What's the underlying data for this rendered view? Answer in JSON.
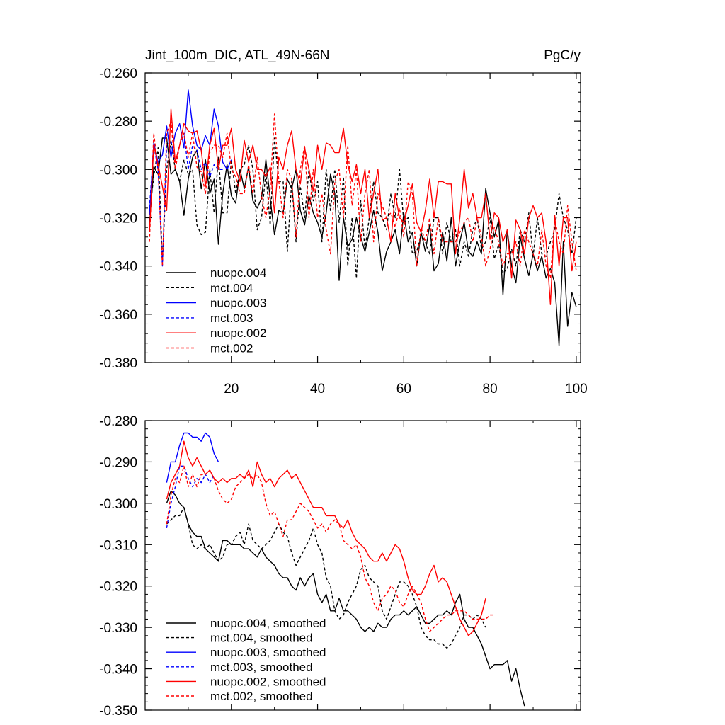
{
  "figure": {
    "title_left": "Jint_100m_DIC, ATL_49N-66N",
    "title_right": "PgC/y"
  },
  "colors": {
    "black": "#000000",
    "blue": "#0000ff",
    "red": "#ff0000"
  },
  "chart_data": [
    {
      "type": "line",
      "panel": "top",
      "title": "Jint_100m_DIC, ATL_49N-66N",
      "units": "PgC/y",
      "xlabel": "",
      "ylabel": "",
      "xlim": [
        0,
        101
      ],
      "ylim": [
        -0.38,
        -0.26
      ],
      "xticks": [
        20,
        40,
        60,
        80,
        100
      ],
      "xtick_labels": [
        "20",
        "40",
        "60",
        "80",
        "100"
      ],
      "yticks": [
        -0.26,
        -0.28,
        -0.3,
        -0.32,
        -0.34,
        -0.36,
        -0.38
      ],
      "ytick_labels": [
        "-0.260",
        "-0.280",
        "-0.300",
        "-0.320",
        "-0.340",
        "-0.360",
        "-0.380"
      ],
      "legend": [
        "nuopc.004",
        "mct.004",
        "nuopc.003",
        "mct.003",
        "nuopc.002",
        "mct.002"
      ],
      "series": [
        {
          "name": "nuopc.004",
          "color": "#000000",
          "dash": false,
          "x_start": 1,
          "values": [
            -0.323,
            -0.299,
            -0.302,
            -0.287,
            -0.287,
            -0.302,
            -0.3,
            -0.305,
            -0.319,
            -0.304,
            -0.295,
            -0.292,
            -0.308,
            -0.296,
            -0.31,
            -0.304,
            -0.331,
            -0.31,
            -0.298,
            -0.311,
            -0.314,
            -0.3,
            -0.308,
            -0.299,
            -0.313,
            -0.316,
            -0.312,
            -0.296,
            -0.312,
            -0.327,
            -0.317,
            -0.318,
            -0.304,
            -0.308,
            -0.3,
            -0.317,
            -0.323,
            -0.311,
            -0.318,
            -0.322,
            -0.328,
            -0.318,
            -0.302,
            -0.31,
            -0.346,
            -0.32,
            -0.332,
            -0.329,
            -0.32,
            -0.328,
            -0.334,
            -0.326,
            -0.317,
            -0.326,
            -0.342,
            -0.334,
            -0.33,
            -0.325,
            -0.335,
            -0.318,
            -0.33,
            -0.326,
            -0.34,
            -0.326,
            -0.334,
            -0.323,
            -0.342,
            -0.339,
            -0.326,
            -0.338,
            -0.32,
            -0.34,
            -0.33,
            -0.322,
            -0.334,
            -0.336,
            -0.33,
            -0.335,
            -0.308,
            -0.318,
            -0.328,
            -0.321,
            -0.352,
            -0.325,
            -0.34,
            -0.347,
            -0.328,
            -0.337,
            -0.344,
            -0.335,
            -0.342,
            -0.336,
            -0.345,
            -0.341,
            -0.347,
            -0.373,
            -0.33,
            -0.365,
            -0.351,
            -0.357
          ]
        },
        {
          "name": "mct.004",
          "color": "#000000",
          "dash": true,
          "x_start": 1,
          "values": [
            -0.318,
            -0.303,
            -0.291,
            -0.338,
            -0.3,
            -0.288,
            -0.3,
            -0.305,
            -0.296,
            -0.302,
            -0.3,
            -0.323,
            -0.327,
            -0.326,
            -0.3,
            -0.318,
            -0.295,
            -0.318,
            -0.318,
            -0.296,
            -0.31,
            -0.3,
            -0.298,
            -0.29,
            -0.3,
            -0.325,
            -0.32,
            -0.301,
            -0.323,
            -0.287,
            -0.305,
            -0.305,
            -0.334,
            -0.305,
            -0.33,
            -0.307,
            -0.32,
            -0.3,
            -0.313,
            -0.305,
            -0.33,
            -0.3,
            -0.317,
            -0.3,
            -0.322,
            -0.303,
            -0.34,
            -0.32,
            -0.345,
            -0.313,
            -0.333,
            -0.32,
            -0.305,
            -0.318,
            -0.32,
            -0.325,
            -0.31,
            -0.32,
            -0.3,
            -0.322,
            -0.32,
            -0.335,
            -0.334,
            -0.327,
            -0.33,
            -0.335,
            -0.32,
            -0.32,
            -0.335,
            -0.322,
            -0.33,
            -0.325,
            -0.34,
            -0.33,
            -0.336,
            -0.325,
            -0.32,
            -0.333,
            -0.33,
            -0.32,
            -0.337,
            -0.331,
            -0.343,
            -0.341,
            -0.333,
            -0.34,
            -0.325,
            -0.33,
            -0.318,
            -0.336,
            -0.32,
            -0.335,
            -0.336,
            -0.33,
            -0.325,
            -0.31,
            -0.32,
            -0.325,
            -0.335,
            -0.32
          ]
        },
        {
          "name": "nuopc.003",
          "color": "#0000ff",
          "dash": false,
          "x_start": 1,
          "values": [
            -0.319,
            -0.289,
            -0.297,
            -0.294,
            -0.282,
            -0.295,
            -0.285,
            -0.281,
            -0.291,
            -0.267,
            -0.282,
            -0.29,
            -0.292,
            -0.286,
            -0.29,
            -0.275,
            -0.282,
            -0.297,
            -0.3,
            -0.296
          ]
        },
        {
          "name": "mct.003",
          "color": "#0000ff",
          "dash": true,
          "x_start": 1,
          "values": [
            -0.316,
            -0.29,
            -0.3,
            -0.34,
            -0.29,
            -0.288,
            -0.297,
            -0.29,
            -0.285,
            -0.3,
            -0.29,
            -0.292,
            -0.3,
            -0.297,
            -0.303,
            -0.298,
            -0.3,
            -0.3
          ]
        },
        {
          "name": "nuopc.002",
          "color": "#ff0000",
          "dash": false,
          "x_start": 1,
          "values": [
            -0.326,
            -0.29,
            -0.298,
            -0.307,
            -0.317,
            -0.275,
            -0.297,
            -0.29,
            -0.281,
            -0.284,
            -0.285,
            -0.284,
            -0.292,
            -0.307,
            -0.29,
            -0.283,
            -0.3,
            -0.29,
            -0.29,
            -0.283,
            -0.3,
            -0.305,
            -0.288,
            -0.297,
            -0.29,
            -0.3,
            -0.3,
            -0.303,
            -0.299,
            -0.318,
            -0.295,
            -0.3,
            -0.29,
            -0.284,
            -0.3,
            -0.306,
            -0.291,
            -0.3,
            -0.309,
            -0.29,
            -0.3,
            -0.289,
            -0.29,
            -0.293,
            -0.293,
            -0.283,
            -0.298,
            -0.305,
            -0.298,
            -0.31,
            -0.3,
            -0.32,
            -0.31,
            -0.3,
            -0.321,
            -0.32,
            -0.33,
            -0.31,
            -0.32,
            -0.322,
            -0.315,
            -0.306,
            -0.322,
            -0.326,
            -0.317,
            -0.304,
            -0.32,
            -0.305,
            -0.305,
            -0.306,
            -0.306,
            -0.335,
            -0.32,
            -0.3,
            -0.316,
            -0.31,
            -0.32,
            -0.32,
            -0.31,
            -0.329,
            -0.318,
            -0.32,
            -0.33,
            -0.325,
            -0.345,
            -0.321,
            -0.325,
            -0.335,
            -0.32,
            -0.315,
            -0.32,
            -0.318,
            -0.33,
            -0.356,
            -0.319,
            -0.34,
            -0.32,
            -0.32,
            -0.342,
            -0.33
          ]
        },
        {
          "name": "mct.002",
          "color": "#ff0000",
          "dash": true,
          "x_start": 1,
          "values": [
            -0.33,
            -0.285,
            -0.3,
            -0.34,
            -0.285,
            -0.28,
            -0.3,
            -0.29,
            -0.285,
            -0.295,
            -0.285,
            -0.299,
            -0.301,
            -0.31,
            -0.293,
            -0.29,
            -0.29,
            -0.295,
            -0.285,
            -0.3,
            -0.303,
            -0.31,
            -0.31,
            -0.298,
            -0.31,
            -0.295,
            -0.311,
            -0.32,
            -0.308,
            -0.277,
            -0.305,
            -0.32,
            -0.3,
            -0.304,
            -0.328,
            -0.3,
            -0.29,
            -0.32,
            -0.3,
            -0.32,
            -0.31,
            -0.325,
            -0.335,
            -0.305,
            -0.3,
            -0.32,
            -0.29,
            -0.315,
            -0.3,
            -0.33,
            -0.31,
            -0.3,
            -0.33,
            -0.31,
            -0.315,
            -0.32,
            -0.318,
            -0.324,
            -0.316,
            -0.328,
            -0.305,
            -0.31,
            -0.34,
            -0.324,
            -0.33,
            -0.32,
            -0.335,
            -0.32,
            -0.33,
            -0.33,
            -0.33,
            -0.33,
            -0.326,
            -0.322,
            -0.32,
            -0.33,
            -0.32,
            -0.328,
            -0.34,
            -0.333,
            -0.324,
            -0.33,
            -0.34,
            -0.335,
            -0.335,
            -0.33,
            -0.34,
            -0.325,
            -0.33,
            -0.335,
            -0.34,
            -0.325,
            -0.34,
            -0.345,
            -0.32,
            -0.33,
            -0.335,
            -0.315,
            -0.33,
            -0.342
          ]
        }
      ]
    },
    {
      "type": "line",
      "panel": "bottom",
      "title": "",
      "xlabel": "",
      "ylabel": "",
      "xlim": [
        0,
        101
      ],
      "ylim": [
        -0.35,
        -0.28
      ],
      "xticks": [
        20,
        40,
        60,
        80,
        100
      ],
      "xtick_labels": [],
      "yticks": [
        -0.28,
        -0.29,
        -0.3,
        -0.31,
        -0.32,
        -0.33,
        -0.34,
        -0.35
      ],
      "ytick_labels": [
        "-0.280",
        "-0.290",
        "-0.300",
        "-0.310",
        "-0.320",
        "-0.330",
        "-0.340",
        "-0.350"
      ],
      "legend": [
        "nuopc.004, smoothed",
        "mct.004, smoothed",
        "nuopc.003, smoothed",
        "mct.003, smoothed",
        "nuopc.002, smoothed",
        "mct.002, smoothed"
      ],
      "series": [
        {
          "name": "nuopc.004, smoothed",
          "color": "#000000",
          "dash": false,
          "x_start": 5,
          "values": [
            -0.3,
            -0.297,
            -0.298,
            -0.3,
            -0.301,
            -0.305,
            -0.307,
            -0.308,
            -0.308,
            -0.311,
            -0.312,
            -0.313,
            -0.314,
            -0.309,
            -0.309,
            -0.31,
            -0.31,
            -0.31,
            -0.311,
            -0.311,
            -0.312,
            -0.313,
            -0.311,
            -0.313,
            -0.314,
            -0.315,
            -0.317,
            -0.318,
            -0.318,
            -0.32,
            -0.321,
            -0.318,
            -0.32,
            -0.318,
            -0.317,
            -0.322,
            -0.324,
            -0.322,
            -0.326,
            -0.326,
            -0.323,
            -0.326,
            -0.326,
            -0.327,
            -0.328,
            -0.33,
            -0.331,
            -0.33,
            -0.331,
            -0.329,
            -0.33,
            -0.33,
            -0.328,
            -0.327,
            -0.327,
            -0.326,
            -0.327,
            -0.326,
            -0.325,
            -0.327,
            -0.329,
            -0.329,
            -0.328,
            -0.327,
            -0.327,
            -0.326,
            -0.327,
            -0.324,
            -0.322,
            -0.328,
            -0.33,
            -0.33,
            -0.332,
            -0.334,
            -0.337,
            -0.34,
            -0.339,
            -0.339,
            -0.339,
            -0.338,
            -0.343,
            -0.34,
            -0.345,
            -0.349
          ]
        },
        {
          "name": "mct.004, smoothed",
          "color": "#000000",
          "dash": true,
          "x_start": 5,
          "values": [
            -0.305,
            -0.304,
            -0.303,
            -0.303,
            -0.301,
            -0.305,
            -0.31,
            -0.311,
            -0.31,
            -0.311,
            -0.31,
            -0.312,
            -0.314,
            -0.313,
            -0.31,
            -0.31,
            -0.308,
            -0.307,
            -0.31,
            -0.305,
            -0.309,
            -0.31,
            -0.311,
            -0.31,
            -0.309,
            -0.307,
            -0.305,
            -0.307,
            -0.308,
            -0.312,
            -0.315,
            -0.313,
            -0.311,
            -0.309,
            -0.306,
            -0.31,
            -0.312,
            -0.318,
            -0.32,
            -0.326,
            -0.328,
            -0.327,
            -0.324,
            -0.322,
            -0.32,
            -0.316,
            -0.315,
            -0.318,
            -0.319,
            -0.32,
            -0.326,
            -0.328,
            -0.325,
            -0.322,
            -0.319,
            -0.319,
            -0.32,
            -0.322,
            -0.325,
            -0.33,
            -0.332,
            -0.333,
            -0.333,
            -0.334,
            -0.334,
            -0.335,
            -0.334,
            -0.332,
            -0.33,
            -0.327,
            -0.327,
            -0.328,
            -0.327,
            -0.328,
            -0.33
          ]
        },
        {
          "name": "nuopc.003, smoothed",
          "color": "#0000ff",
          "dash": false,
          "x_start": 5,
          "values": [
            -0.295,
            -0.29,
            -0.29,
            -0.286,
            -0.283,
            -0.283,
            -0.284,
            -0.284,
            -0.285,
            -0.283,
            -0.284,
            -0.288,
            -0.29
          ]
        },
        {
          "name": "mct.003, smoothed",
          "color": "#0000ff",
          "dash": true,
          "x_start": 5,
          "values": [
            -0.306,
            -0.3,
            -0.296,
            -0.291,
            -0.291,
            -0.294,
            -0.296,
            -0.294,
            -0.295,
            -0.293,
            -0.295,
            -0.293
          ]
        },
        {
          "name": "nuopc.002, smoothed",
          "color": "#ff0000",
          "dash": false,
          "x_start": 5,
          "values": [
            -0.299,
            -0.295,
            -0.293,
            -0.291,
            -0.285,
            -0.289,
            -0.291,
            -0.289,
            -0.291,
            -0.293,
            -0.292,
            -0.294,
            -0.295,
            -0.294,
            -0.295,
            -0.294,
            -0.294,
            -0.293,
            -0.294,
            -0.292,
            -0.296,
            -0.29,
            -0.293,
            -0.295,
            -0.294,
            -0.296,
            -0.294,
            -0.293,
            -0.292,
            -0.294,
            -0.293,
            -0.295,
            -0.297,
            -0.299,
            -0.301,
            -0.301,
            -0.301,
            -0.303,
            -0.303,
            -0.303,
            -0.305,
            -0.306,
            -0.304,
            -0.307,
            -0.309,
            -0.31,
            -0.311,
            -0.313,
            -0.314,
            -0.314,
            -0.312,
            -0.314,
            -0.312,
            -0.31,
            -0.311,
            -0.314,
            -0.318,
            -0.321,
            -0.322,
            -0.322,
            -0.32,
            -0.317,
            -0.315,
            -0.319,
            -0.318,
            -0.319,
            -0.322,
            -0.325,
            -0.328,
            -0.33,
            -0.332,
            -0.331,
            -0.329,
            -0.327,
            -0.323
          ]
        },
        {
          "name": "mct.002, smoothed",
          "color": "#ff0000",
          "dash": true,
          "x_start": 5,
          "values": [
            -0.305,
            -0.298,
            -0.294,
            -0.295,
            -0.291,
            -0.296,
            -0.293,
            -0.296,
            -0.293,
            -0.293,
            -0.292,
            -0.294,
            -0.297,
            -0.299,
            -0.3,
            -0.299,
            -0.296,
            -0.295,
            -0.294,
            -0.293,
            -0.294,
            -0.293,
            -0.295,
            -0.3,
            -0.303,
            -0.302,
            -0.305,
            -0.308,
            -0.304,
            -0.304,
            -0.302,
            -0.3,
            -0.301,
            -0.302,
            -0.304,
            -0.306,
            -0.305,
            -0.307,
            -0.305,
            -0.304,
            -0.305,
            -0.309,
            -0.31,
            -0.311,
            -0.31,
            -0.313,
            -0.318,
            -0.32,
            -0.324,
            -0.326,
            -0.323,
            -0.322,
            -0.32,
            -0.321,
            -0.324,
            -0.325,
            -0.322,
            -0.32,
            -0.322,
            -0.324,
            -0.328,
            -0.331,
            -0.33,
            -0.329,
            -0.328,
            -0.327,
            -0.327,
            -0.326,
            -0.326,
            -0.326,
            -0.327,
            -0.328,
            -0.328,
            -0.328,
            -0.328,
            -0.327,
            -0.327
          ]
        }
      ]
    }
  ]
}
